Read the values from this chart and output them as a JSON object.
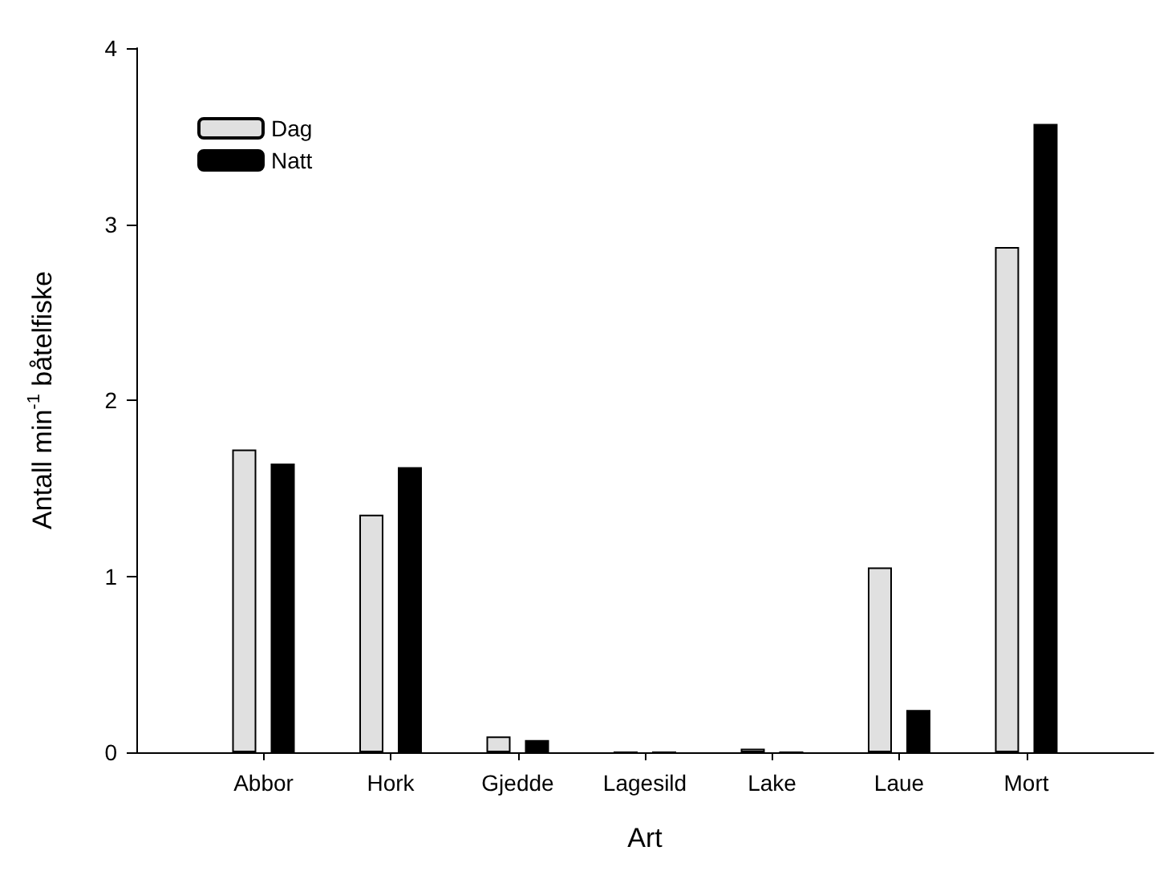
{
  "chart_data": {
    "type": "bar",
    "xlabel": "Art",
    "ylabel": "Antall min$^{-1}$ båtelfiske",
    "categories": [
      "Abbor",
      "Hork",
      "Gjedde",
      "Lagesild",
      "Lake",
      "Laue",
      "Mort"
    ],
    "series": [
      {
        "name": "Dag",
        "color": "#e0e0e0",
        "values": [
          1.72,
          1.35,
          0.09,
          0,
          0.02,
          1.05,
          2.87
        ]
      },
      {
        "name": "Natt",
        "color": "#000000",
        "values": [
          1.64,
          1.62,
          0.07,
          0,
          0,
          0.24,
          3.57
        ]
      }
    ],
    "ylim": [
      0,
      4
    ],
    "yticks": [
      0,
      1,
      2,
      3,
      4
    ],
    "grid": false,
    "legend": "top left"
  }
}
